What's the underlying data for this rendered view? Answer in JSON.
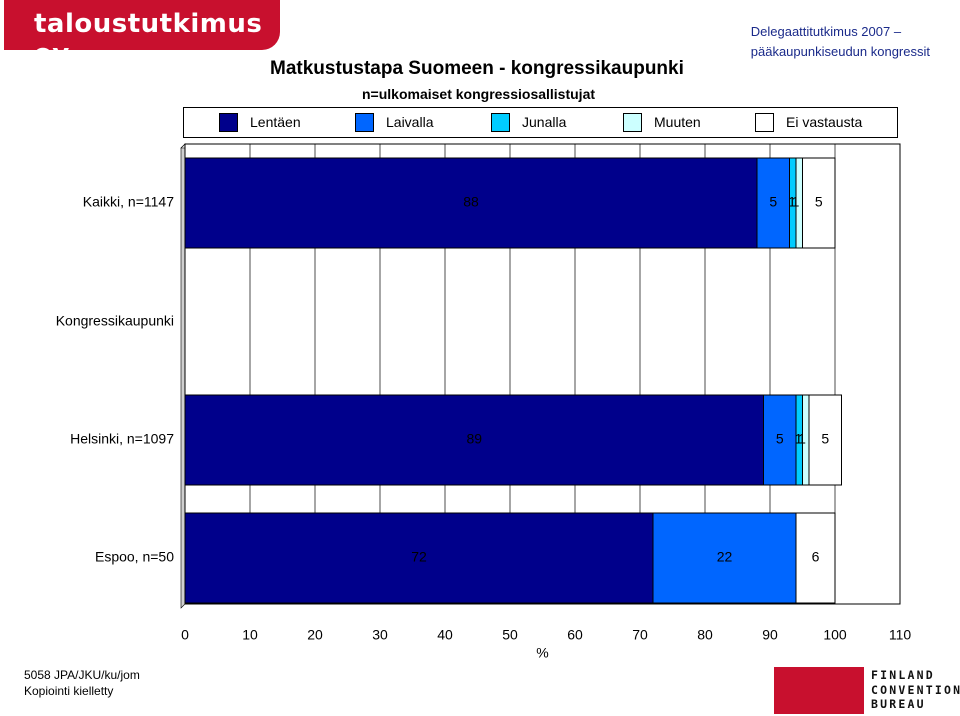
{
  "logo": {
    "text": "taloustutkimus oy"
  },
  "header": {
    "right_line1": "Delegaattitutkimus 2007 –",
    "right_line2": "pääkaupunkiseudun kongressit"
  },
  "footer": {
    "code": "5058 JPA/JKU/ku/jom",
    "copy": "Kopiointi kielletty",
    "brand_lines": [
      "FINLAND",
      "CONVENTION",
      "BUREAU"
    ]
  },
  "chart_data": {
    "type": "bar",
    "orientation": "horizontal",
    "stacked": true,
    "title": "Matkustustapa Suomeen - kongressikaupunki",
    "subtitle": "n=ulkomaiset kongressiosallistujat",
    "xlabel": "%",
    "xlim": [
      0,
      110
    ],
    "xticks": [
      0,
      10,
      20,
      30,
      40,
      50,
      60,
      70,
      80,
      90,
      100,
      110
    ],
    "grid": true,
    "legend_position": "top",
    "section_label": "Kongressikaupunki",
    "categories": [
      "Kaikki, n=1147",
      "Helsinki, n=1097",
      "Espoo, n=50"
    ],
    "series": [
      {
        "name": "Lentäen",
        "color": "#00008b",
        "values": [
          88,
          89,
          72
        ]
      },
      {
        "name": "Laivalla",
        "color": "#0066ff",
        "values": [
          5,
          5,
          22
        ]
      },
      {
        "name": "Junalla",
        "color": "#00ccff",
        "values": [
          1,
          1,
          0
        ]
      },
      {
        "name": "Muuten",
        "color": "#ccffff",
        "values": [
          1,
          1,
          0
        ]
      },
      {
        "name": "Ei vastausta",
        "color": "#ffffff",
        "values": [
          5,
          5,
          6
        ]
      }
    ]
  }
}
